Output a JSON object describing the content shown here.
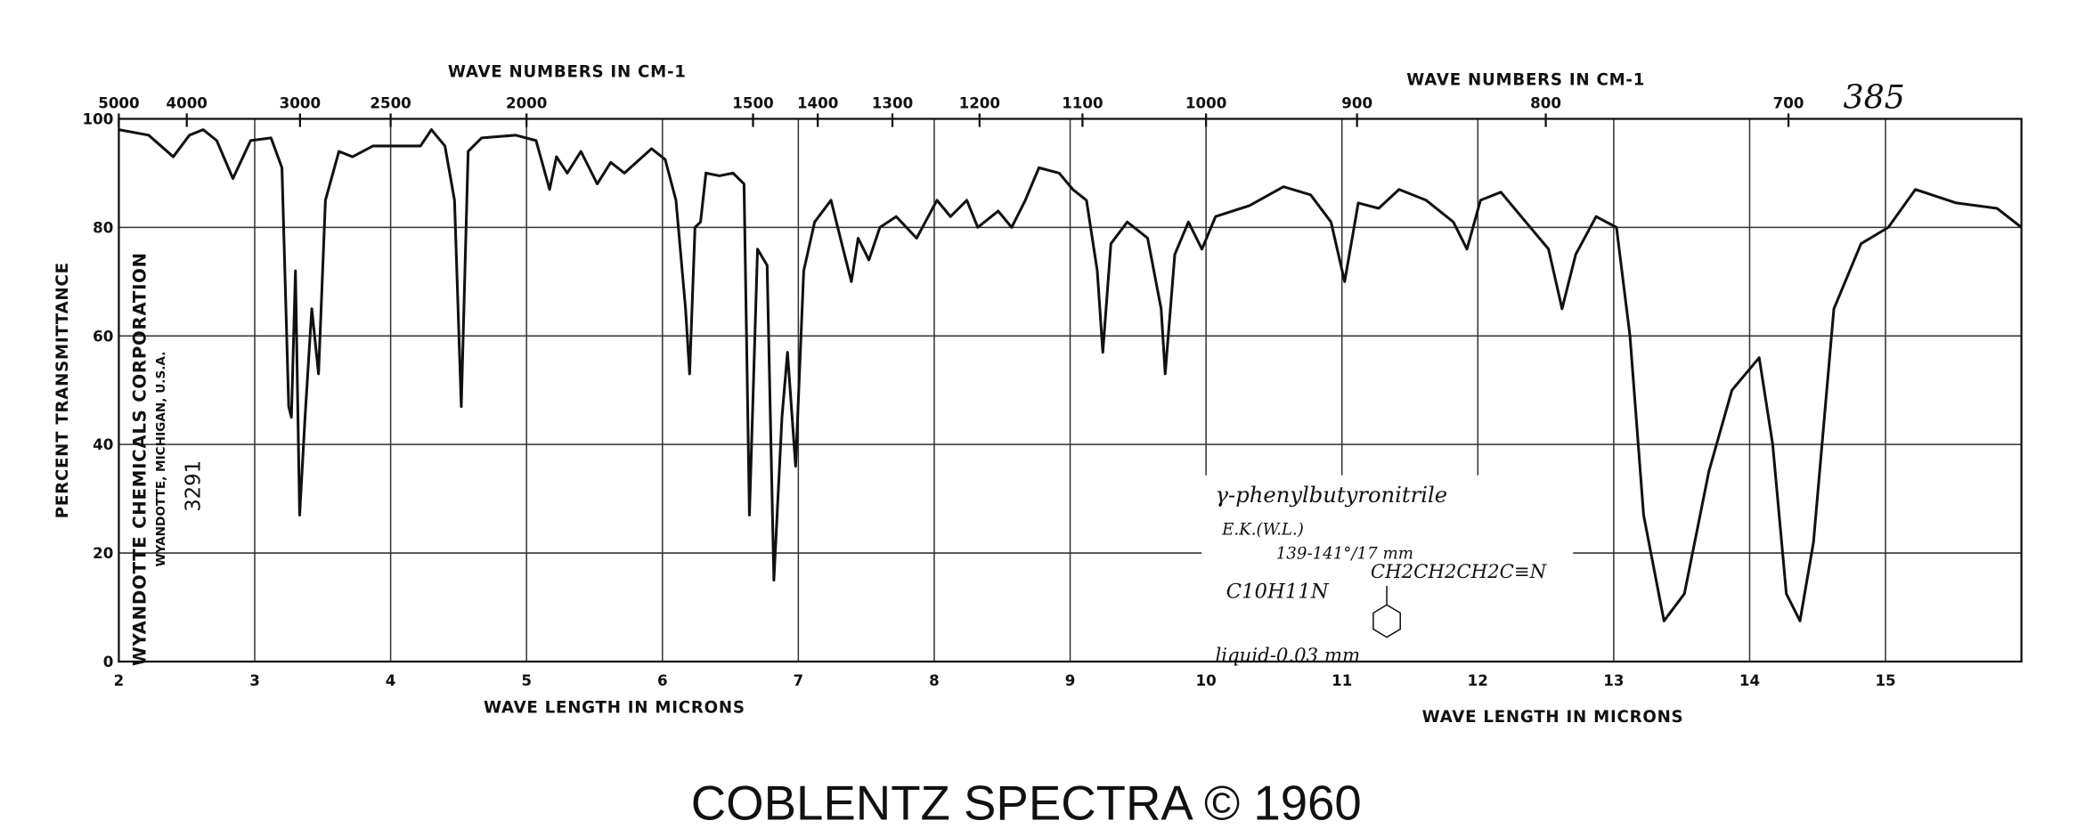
{
  "chart_data": {
    "type": "line",
    "catalog_number": "385",
    "x_label_top": "WAVE NUMBERS IN CM-1",
    "x_label_top_right": "WAVE NUMBERS IN CM-1",
    "x_label": "WAVE LENGTH IN MICRONS",
    "x_label_right": "WAVE LENGTH IN MICRONS",
    "y_label": "PERCENT TRANSMITTANCE",
    "source_lines": [
      "WYANDOTTE CHEMICALS CORPORATION",
      "WYANDOTTE, MICHIGAN, U.S.A.",
      "3291"
    ],
    "annotations": [
      "γ-phenylbutyronitrile",
      "E.K.(W.L.)",
      "139-141°/17 mm",
      "C10H11N",
      "CH2CH2CH2C≡N",
      "liquid-0.03 mm"
    ],
    "footer": "COBLENTZ SPECTRA © 1960",
    "color": "#111111",
    "grid": true,
    "xlim": [
      2,
      16
    ],
    "ylim": [
      0,
      100
    ],
    "xticks": [
      2,
      3,
      4,
      5,
      6,
      7,
      8,
      9,
      10,
      11,
      12,
      13,
      14,
      15
    ],
    "yticks": [
      0,
      20,
      40,
      60,
      80,
      100
    ],
    "x2ticks": [
      5000,
      4000,
      3000,
      2500,
      2000,
      1500,
      1400,
      1300,
      1200,
      1100,
      1000,
      900,
      800,
      700
    ],
    "x": [
      2.0,
      2.22,
      2.4,
      2.52,
      2.62,
      2.72,
      2.84,
      2.97,
      3.12,
      3.2,
      3.25,
      3.27,
      3.3,
      3.33,
      3.37,
      3.42,
      3.47,
      3.52,
      3.62,
      3.72,
      3.87,
      4.02,
      4.22,
      4.3,
      4.4,
      4.47,
      4.52,
      4.57,
      4.67,
      4.92,
      5.07,
      5.17,
      5.22,
      5.3,
      5.4,
      5.52,
      5.62,
      5.72,
      5.92,
      6.02,
      6.1,
      6.17,
      6.2,
      6.24,
      6.28,
      6.32,
      6.42,
      6.52,
      6.6,
      6.64,
      6.7,
      6.77,
      6.82,
      6.88,
      6.92,
      6.98,
      7.04,
      7.12,
      7.24,
      7.32,
      7.39,
      7.44,
      7.52,
      7.6,
      7.72,
      7.87,
      8.02,
      8.12,
      8.24,
      8.32,
      8.47,
      8.57,
      8.67,
      8.77,
      8.92,
      9.02,
      9.12,
      9.2,
      9.24,
      9.3,
      9.42,
      9.57,
      9.67,
      9.7,
      9.77,
      9.87,
      9.97,
      10.07,
      10.32,
      10.57,
      10.77,
      10.92,
      11.02,
      11.12,
      11.27,
      11.42,
      11.62,
      11.82,
      11.92,
      12.02,
      12.17,
      12.32,
      12.52,
      12.62,
      12.72,
      12.87,
      13.02,
      13.12,
      13.22,
      13.37,
      13.52,
      13.7,
      13.87,
      14.07,
      14.17,
      14.27,
      14.37,
      14.47,
      14.62,
      14.82,
      15.02,
      15.22,
      15.52,
      15.82,
      16.0
    ],
    "values": [
      98,
      97,
      93,
      97,
      98,
      96,
      89,
      96,
      96.5,
      91,
      47,
      45,
      72,
      27,
      45,
      65,
      53,
      85,
      94,
      93,
      95,
      95,
      95,
      98,
      95,
      85,
      47,
      94,
      96.5,
      97,
      96,
      87,
      93,
      90,
      94,
      88,
      92,
      90,
      94.5,
      92.5,
      85,
      65,
      53,
      80,
      81,
      90,
      89.5,
      90,
      88,
      27,
      76,
      73,
      15,
      45,
      57,
      36,
      72,
      81,
      85,
      77,
      70,
      78,
      74,
      80,
      82,
      78,
      85,
      82,
      85,
      80,
      83,
      80,
      85,
      91,
      90,
      87,
      85,
      72,
      57,
      77,
      81,
      78,
      65,
      53,
      75,
      81,
      76,
      82,
      84,
      87.5,
      86,
      81,
      70,
      84.5,
      83.5,
      87,
      85,
      81,
      76,
      85,
      86.5,
      82,
      76,
      65,
      75,
      82,
      80,
      60,
      27,
      7.5,
      12.5,
      35,
      50,
      56,
      40,
      12.5,
      7.5,
      22,
      65,
      77,
      80,
      87,
      84.5,
      83.5,
      80
    ]
  }
}
